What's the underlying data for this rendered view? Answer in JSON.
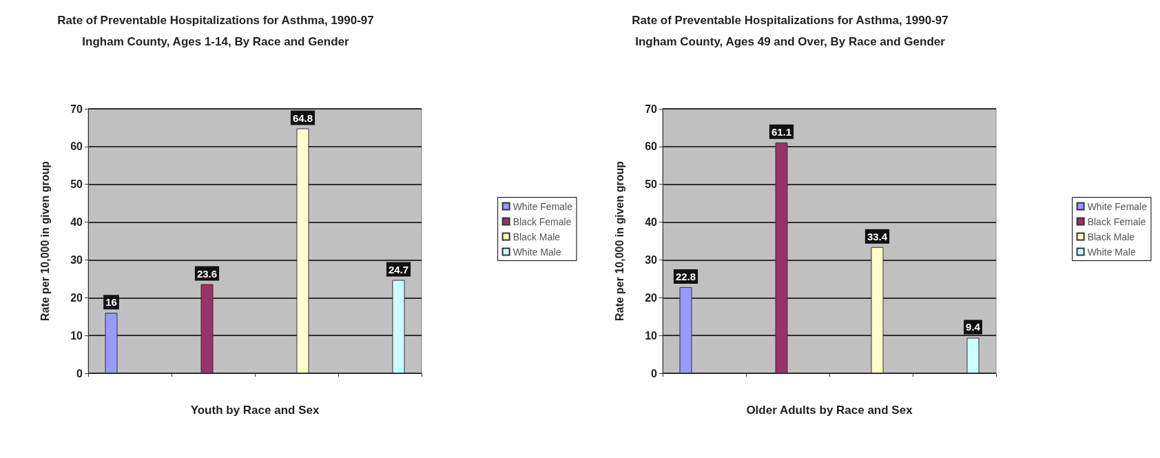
{
  "chart_data": [
    {
      "type": "bar",
      "title": "Rate of Preventable Hospitalizations for Asthma, 1990-97",
      "subtitle": "Ingham County, Ages 1-14, By Race and Gender",
      "xlabel": "Youth by Race and Sex",
      "ylabel": "Rate per 10,000 in given group",
      "categories": [
        null,
        null,
        null,
        null
      ],
      "series": [
        {
          "name": "White Female",
          "color": "#9999ff",
          "values": [
            16,
            null,
            null,
            null
          ]
        },
        {
          "name": "Black Female",
          "color": "#993366",
          "values": [
            null,
            23.6,
            null,
            null
          ]
        },
        {
          "name": "Black Male",
          "color": "#ffffcc",
          "values": [
            null,
            null,
            64.8,
            null
          ]
        },
        {
          "name": "White Male",
          "color": "#ccffff",
          "values": [
            null,
            null,
            null,
            24.7
          ]
        }
      ],
      "ylim": [
        0,
        70
      ],
      "yticks": [
        0,
        10,
        20,
        30,
        40,
        50,
        60,
        70
      ],
      "grid": "y",
      "legend": "right",
      "data_labels": true
    },
    {
      "type": "bar",
      "title": "Rate of Preventable Hospitalizations for Asthma, 1990-97",
      "subtitle": "Ingham County, Ages 49 and Over, By Race and Gender",
      "xlabel": "Older Adults by Race and Sex",
      "ylabel": "Rate per 10,000 in given group",
      "categories": [
        null,
        null,
        null,
        null
      ],
      "series": [
        {
          "name": "White Female",
          "color": "#9999ff",
          "values": [
            22.8,
            null,
            null,
            null
          ]
        },
        {
          "name": "Black Female",
          "color": "#993366",
          "values": [
            null,
            61.1,
            null,
            null
          ]
        },
        {
          "name": "Black Male",
          "color": "#ffffcc",
          "values": [
            null,
            null,
            33.4,
            null
          ]
        },
        {
          "name": "White Male",
          "color": "#ccffff",
          "values": [
            null,
            null,
            null,
            9.4
          ]
        }
      ],
      "ylim": [
        0,
        70
      ],
      "yticks": [
        0,
        10,
        20,
        30,
        40,
        50,
        60,
        70
      ],
      "grid": "y",
      "legend": "right",
      "data_labels": true
    }
  ]
}
